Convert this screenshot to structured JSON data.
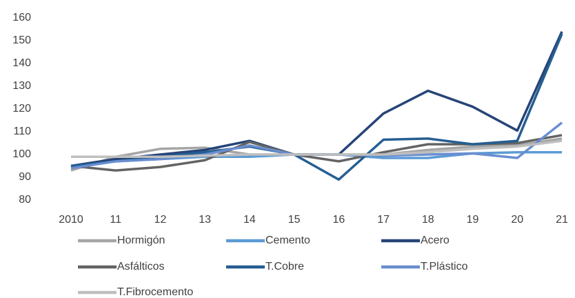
{
  "chart_data": {
    "type": "line",
    "categories": [
      "2010",
      "11",
      "12",
      "13",
      "14",
      "15",
      "16",
      "17",
      "18",
      "19",
      "20",
      "21"
    ],
    "series": [
      {
        "name": "Hormigón",
        "color": "#a5a5a5",
        "values": [
          93,
          99,
          102.5,
          103,
          100,
          100,
          100,
          100,
          102,
          103.5,
          104,
          107
        ]
      },
      {
        "name": "Cemento",
        "color": "#5b9bd5",
        "values": [
          95,
          97,
          98,
          99,
          99,
          100,
          100,
          98.5,
          98.5,
          100.5,
          101,
          101
        ]
      },
      {
        "name": "Acero",
        "color": "#264478",
        "values": [
          95,
          98,
          100,
          102,
          106,
          100,
          100,
          118,
          128,
          121,
          110.5,
          154
        ]
      },
      {
        "name": "Asfálticos",
        "color": "#636363",
        "values": [
          95,
          93,
          94.5,
          97.5,
          105.5,
          100,
          97,
          101,
          104.5,
          104.5,
          105,
          108.5
        ]
      },
      {
        "name": "T.Cobre",
        "color": "#255e91",
        "values": [
          95,
          97,
          99,
          101,
          103.5,
          100,
          89,
          106.5,
          107,
          104.5,
          106,
          153
        ]
      },
      {
        "name": "T.Plástico",
        "color": "#698ed0",
        "values": [
          94,
          97,
          98,
          100,
          104,
          100,
          100,
          99.5,
          100,
          100.5,
          98.5,
          114
        ]
      },
      {
        "name": "T.Fibrocemento",
        "color": "#bfbfbf",
        "values": [
          99,
          99,
          99,
          99.5,
          100,
          100,
          100,
          100,
          101,
          102.5,
          103.5,
          106
        ]
      }
    ],
    "ylim": [
      80,
      160
    ],
    "yticks": [
      80,
      90,
      100,
      110,
      120,
      130,
      140,
      150,
      160
    ],
    "grid": false
  }
}
